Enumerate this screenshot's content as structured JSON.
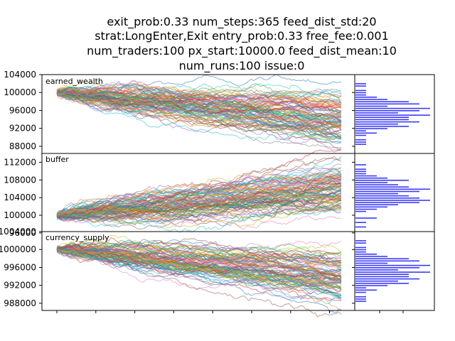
{
  "title_lines": [
    "exit_prob:0.33  num_steps:365  feed_dist_std:20",
    "strat:LongEnter,Exit  entry_prob:0.33  free_fee:0.001",
    "num_traders:100  px_start:10000.0  feed_dist_mean:10",
    "num_runs:100  issue:0"
  ],
  "colors": {
    "histogram": "#3a3aff",
    "series_palette": [
      "#1f77b4",
      "#ff7f0e",
      "#2ca02c",
      "#d62728",
      "#9467bd",
      "#8c564b",
      "#e377c2",
      "#7f7f7f",
      "#bcbd22",
      "#17becf"
    ]
  },
  "chart_data": [
    {
      "type": "line",
      "name": "earned_wealth",
      "label": "earned_wealth",
      "num_series": 100,
      "x_range": [
        0,
        365
      ],
      "start_value": 100000,
      "final_mean": 94000,
      "final_spread": 3000,
      "ylim": [
        86400,
        104000
      ],
      "yticks": [
        88000,
        92000,
        96000,
        100000,
        104000
      ],
      "ytick_labels": [
        "88000",
        "92000",
        "96000",
        "100000",
        "104000"
      ],
      "histogram": {
        "type": "bar",
        "orientation": "horizontal",
        "counts": [
          0,
          0,
          1,
          1,
          1,
          0,
          1,
          2,
          1,
          3,
          5,
          4,
          6,
          5,
          5,
          7,
          4,
          6,
          7,
          3,
          6,
          5,
          3,
          2,
          1,
          1,
          1,
          0,
          1,
          1,
          0,
          0
        ]
      }
    },
    {
      "type": "line",
      "name": "buffer",
      "label": "buffer",
      "num_series": 100,
      "x_range": [
        0,
        365
      ],
      "start_value": 100000,
      "final_mean": 106500,
      "final_spread": 3200,
      "ylim": [
        96300,
        114000
      ],
      "yticks": [
        96000,
        100000,
        104000,
        108000,
        112000
      ],
      "ytick_labels": [
        "96000",
        "100000",
        "104000",
        "108000",
        "112000"
      ],
      "histogram": {
        "type": "bar",
        "orientation": "horizontal",
        "counts": [
          1,
          0,
          1,
          0,
          2,
          0,
          0,
          1,
          2,
          3,
          4,
          6,
          7,
          6,
          5,
          4,
          6,
          7,
          5,
          4,
          3,
          5,
          3,
          2,
          1,
          1,
          1,
          0,
          1,
          0,
          0,
          0
        ]
      }
    },
    {
      "type": "line",
      "name": "currency_supply",
      "label": "currency_supply",
      "num_series": 100,
      "x_range": [
        0,
        365
      ],
      "start_value": 1000000,
      "final_mean": 994000,
      "final_spread": 3000,
      "ylim": [
        986400,
        1004000
      ],
      "yticks": [
        988000,
        992000,
        996000,
        1000000,
        1004000
      ],
      "ytick_labels": [
        "988000",
        "992000",
        "996000",
        "1000000",
        "1004000"
      ],
      "histogram": {
        "type": "bar",
        "orientation": "horizontal",
        "counts": [
          0,
          0,
          1,
          1,
          1,
          0,
          1,
          2,
          1,
          3,
          5,
          4,
          6,
          5,
          5,
          7,
          4,
          6,
          7,
          3,
          6,
          5,
          3,
          2,
          1,
          1,
          1,
          0,
          1,
          1,
          0,
          0
        ]
      }
    }
  ]
}
